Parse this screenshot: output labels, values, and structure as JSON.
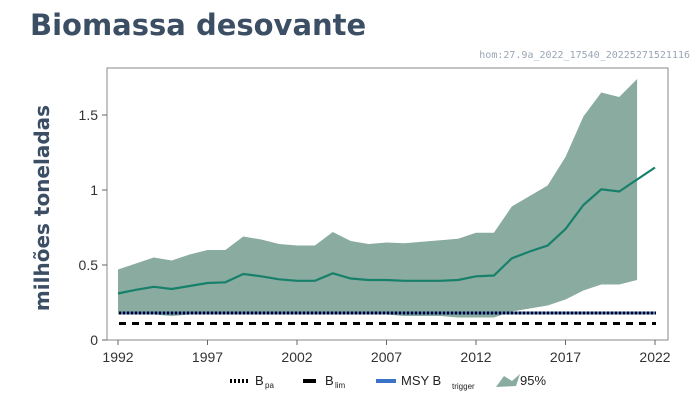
{
  "page": {
    "title": "Biomassa desovante",
    "watermark": "hom:27.9a_2022_17540_20225271521116"
  },
  "chart_data": {
    "type": "line",
    "title": "Biomassa desovante",
    "ylabel": "milhões toneladas",
    "xlabel": "",
    "xlim": [
      1992,
      2022
    ],
    "ylim": [
      0,
      1.8
    ],
    "xticks": [
      1992,
      1997,
      2002,
      2007,
      2012,
      2017,
      2022
    ],
    "yticks": [
      0,
      0.5,
      1,
      1.5
    ],
    "ytick_labels": [
      "0",
      "0.5",
      "1",
      "1.5"
    ],
    "x": [
      1992,
      1993,
      1994,
      1995,
      1996,
      1997,
      1998,
      1999,
      2000,
      2001,
      2002,
      2003,
      2004,
      2005,
      2006,
      2007,
      2008,
      2009,
      2010,
      2011,
      2012,
      2013,
      2014,
      2015,
      2016,
      2017,
      2018,
      2019,
      2020,
      2021,
      2022
    ],
    "series": [
      {
        "name": "",
        "values": [
          0.31,
          0.335,
          0.355,
          0.34,
          0.36,
          0.38,
          0.385,
          0.44,
          0.425,
          0.405,
          0.395,
          0.395,
          0.445,
          0.41,
          0.4,
          0.4,
          0.395,
          0.395,
          0.395,
          0.4,
          0.425,
          0.43,
          0.545,
          0.59,
          0.63,
          0.74,
          0.9,
          1.005,
          0.99,
          1.07,
          1.15
        ]
      }
    ],
    "band": {
      "name": "95%",
      "x": [
        1992,
        1993,
        1994,
        1995,
        1996,
        1997,
        1998,
        1999,
        2000,
        2001,
        2002,
        2003,
        2004,
        2005,
        2006,
        2007,
        2008,
        2009,
        2010,
        2011,
        2012,
        2013,
        2014,
        2015,
        2016,
        2017,
        2018,
        2019,
        2020,
        2021
      ],
      "upper": [
        0.47,
        0.51,
        0.55,
        0.53,
        0.57,
        0.6,
        0.6,
        0.69,
        0.67,
        0.64,
        0.63,
        0.63,
        0.72,
        0.66,
        0.64,
        0.65,
        0.645,
        0.655,
        0.665,
        0.675,
        0.715,
        0.715,
        0.89,
        0.96,
        1.03,
        1.22,
        1.49,
        1.65,
        1.62,
        1.74
      ],
      "lower": [
        0.17,
        0.17,
        0.17,
        0.16,
        0.17,
        0.17,
        0.17,
        0.18,
        0.18,
        0.17,
        0.17,
        0.17,
        0.18,
        0.17,
        0.17,
        0.17,
        0.16,
        0.16,
        0.16,
        0.15,
        0.15,
        0.15,
        0.19,
        0.21,
        0.23,
        0.27,
        0.33,
        0.37,
        0.37,
        0.4
      ]
    },
    "reference_lines": [
      {
        "key": "bpa",
        "label": "B",
        "sub": "pa",
        "value": 0.18,
        "style": "dotted",
        "color": "#000000"
      },
      {
        "key": "blim",
        "label": "B",
        "sub": "lim",
        "value": 0.11,
        "style": "dashed",
        "color": "#000000"
      },
      {
        "key": "msy",
        "label": "MSY B",
        "sub": "trigger",
        "value": 0.18,
        "style": "solid",
        "color": "#3b73c9"
      }
    ],
    "legend": {
      "position": "bottom",
      "entries": [
        {
          "label": "B",
          "sub": "pa"
        },
        {
          "label": "B",
          "sub": "lim"
        },
        {
          "label": "MSY B",
          "sub": "trigger"
        },
        {
          "label": "95%",
          "sub": ""
        }
      ]
    },
    "colors": {
      "line": "#17806b",
      "band": "#8aab9f",
      "msy": "#3b73c9",
      "ref": "#000000"
    },
    "grid": false
  }
}
